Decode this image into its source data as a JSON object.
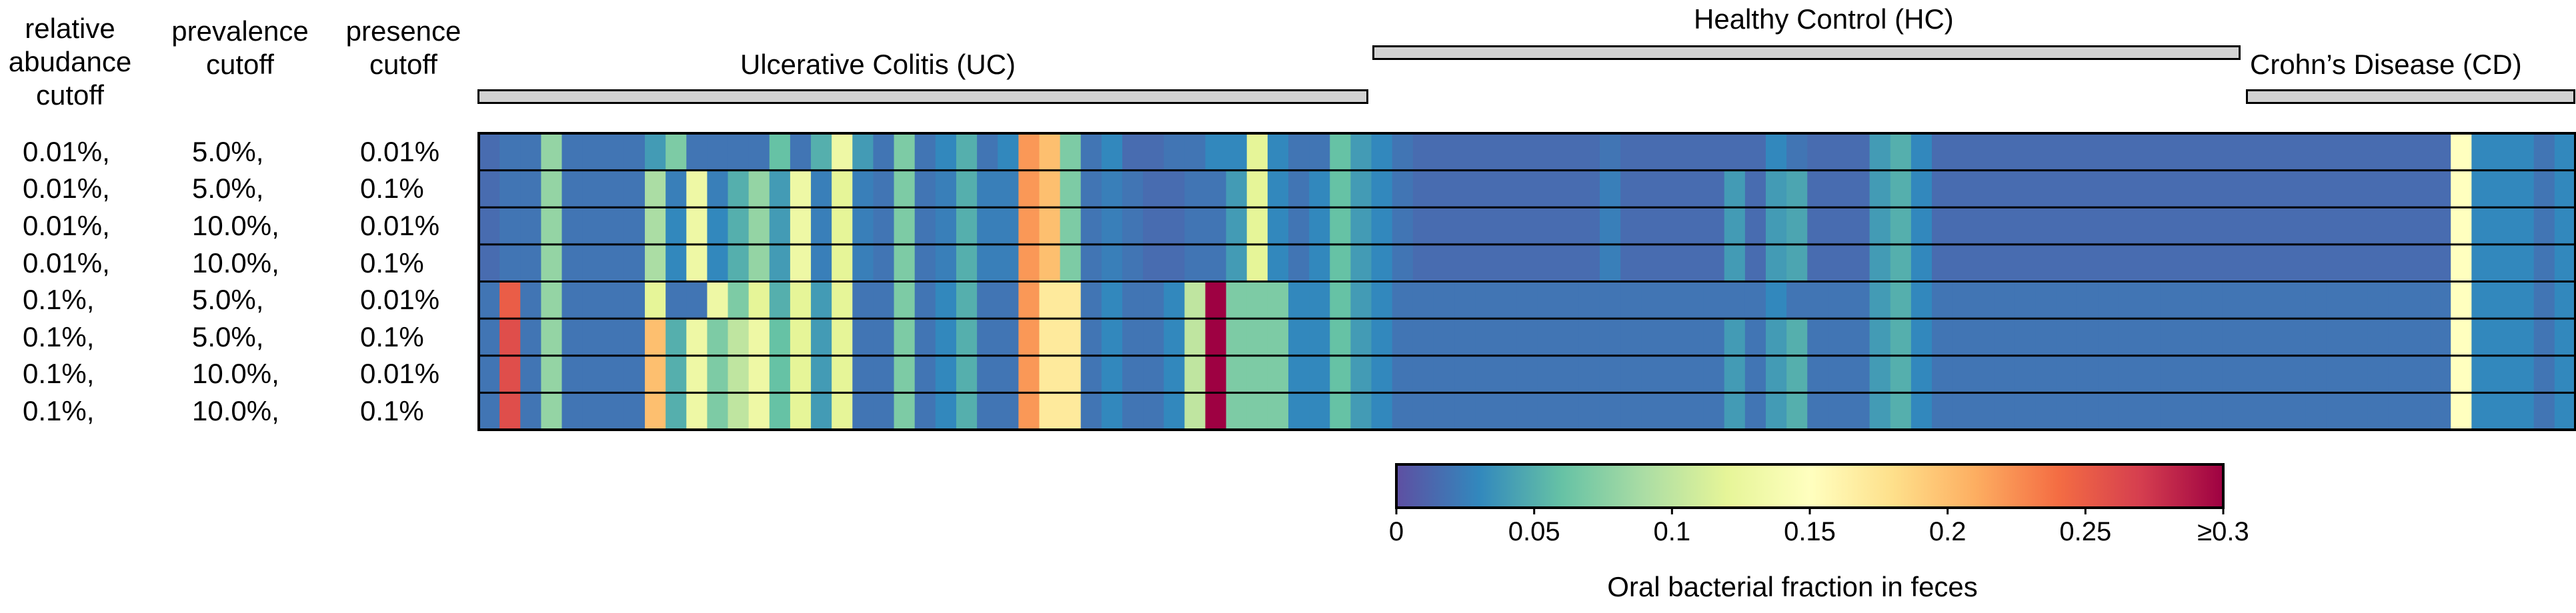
{
  "headers": {
    "relative_abundance": [
      "relative",
      "abudance",
      "cutoff"
    ],
    "prevalence": [
      "prevalence",
      "cutoff"
    ],
    "presence": [
      "presence",
      "cutoff"
    ]
  },
  "chart_data": {
    "type": "heatmap",
    "title": "",
    "rows": [
      {
        "relative_abundance": "0.01%,",
        "prevalence": "5.0%,",
        "presence": "0.01%"
      },
      {
        "relative_abundance": "0.01%,",
        "prevalence": "5.0%,",
        "presence": "0.1%"
      },
      {
        "relative_abundance": "0.01%,",
        "prevalence": "10.0%,",
        "presence": "0.01%"
      },
      {
        "relative_abundance": "0.01%,",
        "prevalence": "10.0%,",
        "presence": "0.1%"
      },
      {
        "relative_abundance": "0.1%,",
        "prevalence": "5.0%,",
        "presence": "0.01%"
      },
      {
        "relative_abundance": "0.1%,",
        "prevalence": "5.0%,",
        "presence": "0.1%"
      },
      {
        "relative_abundance": "0.1%,",
        "prevalence": "10.0%,",
        "presence": "0.01%"
      },
      {
        "relative_abundance": "0.1%,",
        "prevalence": "10.0%,",
        "presence": "0.1%"
      }
    ],
    "groups": [
      {
        "name": "Ulcerative Colitis (UC)",
        "n_samples": 43
      },
      {
        "name": "Healthy Control (HC)",
        "n_samples": 42
      },
      {
        "name": "Crohn’s Disease (CD)",
        "n_samples": 16
      }
    ],
    "n_columns": 101,
    "values": [
      [
        0.015,
        0.02,
        0.02,
        0.08,
        0.02,
        0.02,
        0.02,
        0.02,
        0.04,
        0.07,
        0.02,
        0.02,
        0.02,
        0.02,
        0.06,
        0.02,
        0.05,
        0.13,
        0.04,
        0.02,
        0.07,
        0.02,
        0.03,
        0.05,
        0.02,
        0.03,
        0.22,
        0.2,
        0.07,
        0.02,
        0.03,
        0.015,
        0.015,
        0.02,
        0.02,
        0.03,
        0.03,
        0.12,
        0.03,
        0.02,
        0.02,
        0.06,
        0.04,
        0.03,
        0.02,
        0.015,
        0.015,
        0.015,
        0.015,
        0.015,
        0.015,
        0.015,
        0.015,
        0.015,
        0.02,
        0.015,
        0.015,
        0.015,
        0.015,
        0.015,
        0.015,
        0.015,
        0.03,
        0.02,
        0.015,
        0.015,
        0.015,
        0.04,
        0.05,
        0.03,
        0.015,
        0.015,
        0.015,
        0.015,
        0.015,
        0.015,
        0.015,
        0.015,
        0.015,
        0.015,
        0.015,
        0.015,
        0.015,
        0.015,
        0.015,
        0.015,
        0.015,
        0.015,
        0.015,
        0.015,
        0.015,
        0.015,
        0.015,
        0.015,
        0.015,
        0.15,
        0.03,
        0.03,
        0.03,
        0.02,
        0.03
      ],
      [
        0.015,
        0.02,
        0.02,
        0.08,
        0.02,
        0.02,
        0.02,
        0.02,
        0.09,
        0.025,
        0.13,
        0.025,
        0.05,
        0.08,
        0.04,
        0.13,
        0.025,
        0.12,
        0.025,
        0.02,
        0.07,
        0.02,
        0.025,
        0.05,
        0.025,
        0.025,
        0.22,
        0.2,
        0.07,
        0.02,
        0.025,
        0.02,
        0.015,
        0.015,
        0.02,
        0.02,
        0.04,
        0.12,
        0.03,
        0.02,
        0.03,
        0.06,
        0.04,
        0.03,
        0.02,
        0.015,
        0.015,
        0.015,
        0.015,
        0.015,
        0.015,
        0.015,
        0.015,
        0.015,
        0.025,
        0.015,
        0.015,
        0.015,
        0.015,
        0.015,
        0.04,
        0.015,
        0.04,
        0.045,
        0.015,
        0.015,
        0.015,
        0.04,
        0.05,
        0.03,
        0.015,
        0.015,
        0.015,
        0.015,
        0.015,
        0.015,
        0.015,
        0.015,
        0.015,
        0.015,
        0.015,
        0.015,
        0.015,
        0.015,
        0.015,
        0.015,
        0.015,
        0.015,
        0.015,
        0.015,
        0.015,
        0.015,
        0.015,
        0.015,
        0.015,
        0.15,
        0.03,
        0.03,
        0.03,
        0.02,
        0.03
      ],
      [
        0.015,
        0.02,
        0.02,
        0.08,
        0.02,
        0.02,
        0.02,
        0.02,
        0.09,
        0.03,
        0.13,
        0.03,
        0.05,
        0.08,
        0.04,
        0.13,
        0.025,
        0.12,
        0.025,
        0.02,
        0.07,
        0.02,
        0.025,
        0.05,
        0.025,
        0.025,
        0.22,
        0.2,
        0.07,
        0.02,
        0.025,
        0.02,
        0.015,
        0.015,
        0.02,
        0.02,
        0.04,
        0.12,
        0.03,
        0.02,
        0.03,
        0.06,
        0.04,
        0.03,
        0.02,
        0.015,
        0.015,
        0.015,
        0.015,
        0.015,
        0.015,
        0.015,
        0.015,
        0.015,
        0.025,
        0.015,
        0.015,
        0.015,
        0.015,
        0.015,
        0.04,
        0.015,
        0.04,
        0.045,
        0.015,
        0.015,
        0.015,
        0.04,
        0.05,
        0.03,
        0.015,
        0.015,
        0.015,
        0.015,
        0.015,
        0.015,
        0.015,
        0.015,
        0.015,
        0.015,
        0.015,
        0.015,
        0.015,
        0.015,
        0.015,
        0.015,
        0.015,
        0.015,
        0.015,
        0.015,
        0.015,
        0.015,
        0.015,
        0.015,
        0.015,
        0.15,
        0.03,
        0.03,
        0.03,
        0.02,
        0.03
      ],
      [
        0.015,
        0.02,
        0.02,
        0.08,
        0.02,
        0.02,
        0.02,
        0.02,
        0.09,
        0.03,
        0.13,
        0.03,
        0.05,
        0.08,
        0.04,
        0.13,
        0.025,
        0.12,
        0.025,
        0.02,
        0.07,
        0.02,
        0.025,
        0.05,
        0.025,
        0.025,
        0.22,
        0.2,
        0.07,
        0.02,
        0.025,
        0.02,
        0.015,
        0.015,
        0.02,
        0.02,
        0.04,
        0.12,
        0.03,
        0.02,
        0.03,
        0.06,
        0.04,
        0.03,
        0.02,
        0.015,
        0.015,
        0.015,
        0.015,
        0.015,
        0.015,
        0.015,
        0.015,
        0.015,
        0.025,
        0.015,
        0.015,
        0.015,
        0.015,
        0.015,
        0.04,
        0.015,
        0.04,
        0.045,
        0.015,
        0.015,
        0.015,
        0.04,
        0.05,
        0.03,
        0.015,
        0.015,
        0.015,
        0.015,
        0.015,
        0.015,
        0.015,
        0.015,
        0.015,
        0.015,
        0.015,
        0.015,
        0.015,
        0.015,
        0.015,
        0.015,
        0.015,
        0.015,
        0.015,
        0.015,
        0.015,
        0.015,
        0.015,
        0.015,
        0.015,
        0.15,
        0.03,
        0.03,
        0.03,
        0.02,
        0.03
      ],
      [
        0.02,
        0.25,
        0.02,
        0.08,
        0.02,
        0.02,
        0.02,
        0.02,
        0.12,
        0.02,
        0.02,
        0.13,
        0.07,
        0.12,
        0.05,
        0.12,
        0.04,
        0.12,
        0.02,
        0.02,
        0.07,
        0.02,
        0.03,
        0.05,
        0.02,
        0.02,
        0.22,
        0.17,
        0.17,
        0.02,
        0.03,
        0.02,
        0.02,
        0.03,
        0.1,
        0.3,
        0.07,
        0.07,
        0.07,
        0.03,
        0.03,
        0.06,
        0.04,
        0.03,
        0.02,
        0.02,
        0.02,
        0.02,
        0.02,
        0.02,
        0.02,
        0.02,
        0.02,
        0.02,
        0.02,
        0.02,
        0.02,
        0.02,
        0.02,
        0.02,
        0.02,
        0.02,
        0.03,
        0.02,
        0.02,
        0.02,
        0.02,
        0.04,
        0.05,
        0.03,
        0.02,
        0.02,
        0.02,
        0.02,
        0.02,
        0.02,
        0.02,
        0.02,
        0.02,
        0.02,
        0.02,
        0.02,
        0.02,
        0.02,
        0.02,
        0.02,
        0.02,
        0.02,
        0.02,
        0.02,
        0.02,
        0.02,
        0.02,
        0.02,
        0.02,
        0.15,
        0.03,
        0.03,
        0.03,
        0.02,
        0.03
      ],
      [
        0.02,
        0.26,
        0.02,
        0.08,
        0.02,
        0.02,
        0.02,
        0.02,
        0.2,
        0.05,
        0.13,
        0.07,
        0.1,
        0.13,
        0.06,
        0.12,
        0.04,
        0.12,
        0.02,
        0.02,
        0.07,
        0.02,
        0.03,
        0.05,
        0.02,
        0.02,
        0.22,
        0.17,
        0.17,
        0.02,
        0.03,
        0.02,
        0.02,
        0.03,
        0.1,
        0.3,
        0.07,
        0.07,
        0.07,
        0.03,
        0.03,
        0.06,
        0.04,
        0.03,
        0.02,
        0.02,
        0.02,
        0.02,
        0.02,
        0.02,
        0.02,
        0.02,
        0.02,
        0.02,
        0.02,
        0.02,
        0.02,
        0.02,
        0.02,
        0.02,
        0.04,
        0.02,
        0.04,
        0.05,
        0.02,
        0.02,
        0.02,
        0.04,
        0.05,
        0.03,
        0.02,
        0.02,
        0.02,
        0.02,
        0.02,
        0.02,
        0.02,
        0.02,
        0.02,
        0.02,
        0.02,
        0.02,
        0.02,
        0.02,
        0.02,
        0.02,
        0.02,
        0.02,
        0.02,
        0.02,
        0.02,
        0.02,
        0.02,
        0.02,
        0.02,
        0.15,
        0.03,
        0.03,
        0.03,
        0.02,
        0.03
      ],
      [
        0.02,
        0.26,
        0.02,
        0.08,
        0.02,
        0.02,
        0.02,
        0.02,
        0.2,
        0.05,
        0.13,
        0.07,
        0.1,
        0.13,
        0.06,
        0.12,
        0.04,
        0.12,
        0.02,
        0.02,
        0.07,
        0.02,
        0.03,
        0.05,
        0.02,
        0.02,
        0.22,
        0.17,
        0.17,
        0.02,
        0.03,
        0.02,
        0.02,
        0.03,
        0.1,
        0.3,
        0.07,
        0.07,
        0.07,
        0.03,
        0.03,
        0.06,
        0.04,
        0.03,
        0.02,
        0.02,
        0.02,
        0.02,
        0.02,
        0.02,
        0.02,
        0.02,
        0.02,
        0.02,
        0.02,
        0.02,
        0.02,
        0.02,
        0.02,
        0.02,
        0.04,
        0.02,
        0.04,
        0.05,
        0.02,
        0.02,
        0.02,
        0.04,
        0.05,
        0.03,
        0.02,
        0.02,
        0.02,
        0.02,
        0.02,
        0.02,
        0.02,
        0.02,
        0.02,
        0.02,
        0.02,
        0.02,
        0.02,
        0.02,
        0.02,
        0.02,
        0.02,
        0.02,
        0.02,
        0.02,
        0.02,
        0.02,
        0.02,
        0.02,
        0.02,
        0.15,
        0.03,
        0.03,
        0.03,
        0.02,
        0.03
      ],
      [
        0.02,
        0.26,
        0.02,
        0.08,
        0.02,
        0.02,
        0.02,
        0.02,
        0.2,
        0.05,
        0.13,
        0.07,
        0.1,
        0.13,
        0.06,
        0.12,
        0.04,
        0.12,
        0.02,
        0.02,
        0.07,
        0.02,
        0.03,
        0.05,
        0.02,
        0.02,
        0.22,
        0.17,
        0.17,
        0.02,
        0.03,
        0.02,
        0.02,
        0.03,
        0.1,
        0.3,
        0.07,
        0.07,
        0.07,
        0.03,
        0.03,
        0.06,
        0.04,
        0.03,
        0.02,
        0.02,
        0.02,
        0.02,
        0.02,
        0.02,
        0.02,
        0.02,
        0.02,
        0.02,
        0.02,
        0.02,
        0.02,
        0.02,
        0.02,
        0.02,
        0.04,
        0.02,
        0.04,
        0.05,
        0.02,
        0.02,
        0.02,
        0.04,
        0.05,
        0.03,
        0.02,
        0.02,
        0.02,
        0.02,
        0.02,
        0.02,
        0.02,
        0.02,
        0.02,
        0.02,
        0.02,
        0.02,
        0.02,
        0.02,
        0.02,
        0.02,
        0.02,
        0.02,
        0.02,
        0.02,
        0.02,
        0.02,
        0.02,
        0.02,
        0.02,
        0.15,
        0.03,
        0.03,
        0.03,
        0.02,
        0.03
      ]
    ],
    "colorbar": {
      "min": 0,
      "max": 0.3,
      "ticks": [
        0,
        0.05,
        0.1,
        0.15,
        0.2,
        0.25,
        0.3
      ],
      "tick_labels": [
        "0",
        "0.05",
        "0.1",
        "0.15",
        "0.2",
        "0.25",
        "≥0.3"
      ],
      "label": "Oral bacterial fraction in feces",
      "colormap": [
        "#5e4fa2",
        "#3288bd",
        "#66c2a5",
        "#abdda4",
        "#e6f598",
        "#ffffbf",
        "#fee08b",
        "#fdae61",
        "#f46d43",
        "#d53e4f",
        "#9e0142"
      ]
    }
  }
}
